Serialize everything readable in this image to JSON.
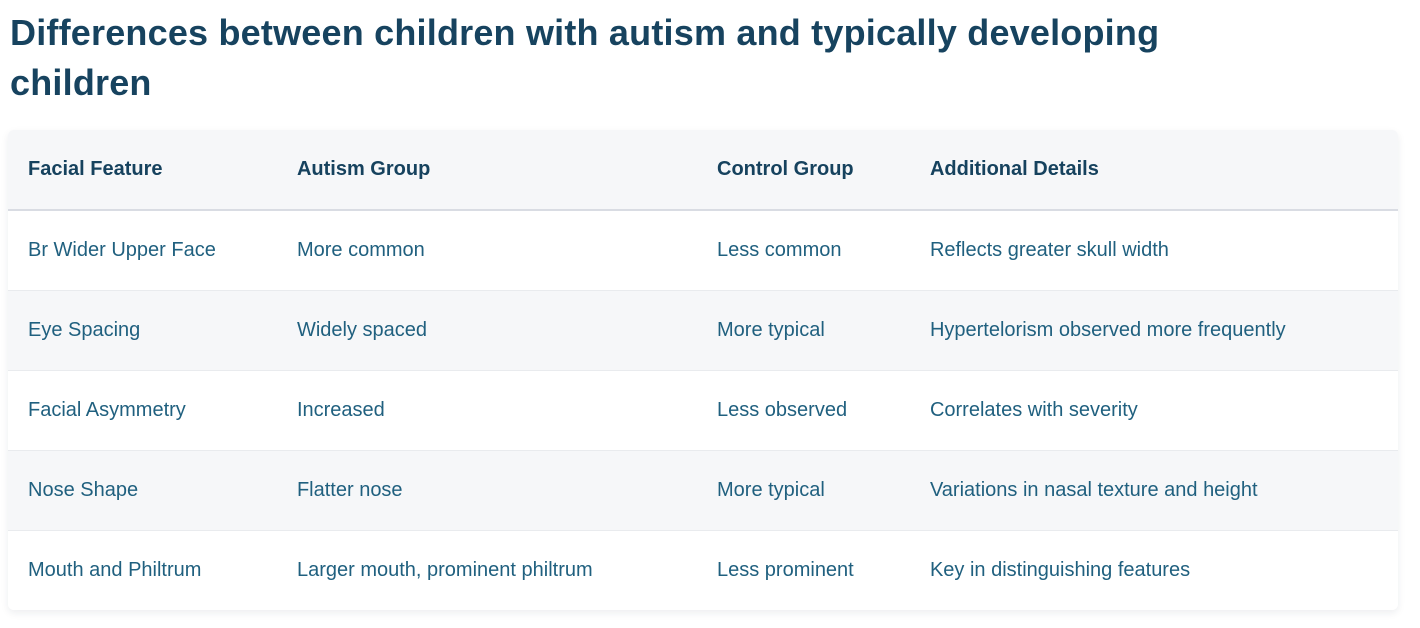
{
  "header": {
    "title": "Differences between children with autism and typically developing children"
  },
  "table": {
    "columns": [
      "Facial Feature",
      "Autism Group",
      "Control Group",
      "Additional Details"
    ],
    "rows": [
      [
        "Br Wider Upper Face",
        "More common",
        "Less common",
        "Reflects greater skull width"
      ],
      [
        "Eye Spacing",
        "Widely spaced",
        "More typical",
        "Hypertelorism observed more frequently"
      ],
      [
        "Facial Asymmetry",
        "Increased",
        "Less observed",
        "Correlates with severity"
      ],
      [
        "Nose Shape",
        "Flatter nose",
        "More typical",
        "Variations in nasal texture and height"
      ],
      [
        "Mouth and Philtrum",
        "Larger mouth, prominent philtrum",
        "Less prominent",
        "Key in distinguishing features"
      ]
    ]
  },
  "colors": {
    "title_text": "#17435f",
    "header_text": "#16425e",
    "body_text": "#20607f",
    "header_bg": "#f6f7f9",
    "stripe_bg": "#f6f7f9",
    "row_bg": "#ffffff",
    "header_border": "#d9dce3",
    "row_border": "#e9ebee",
    "page_bg": "#ffffff"
  }
}
